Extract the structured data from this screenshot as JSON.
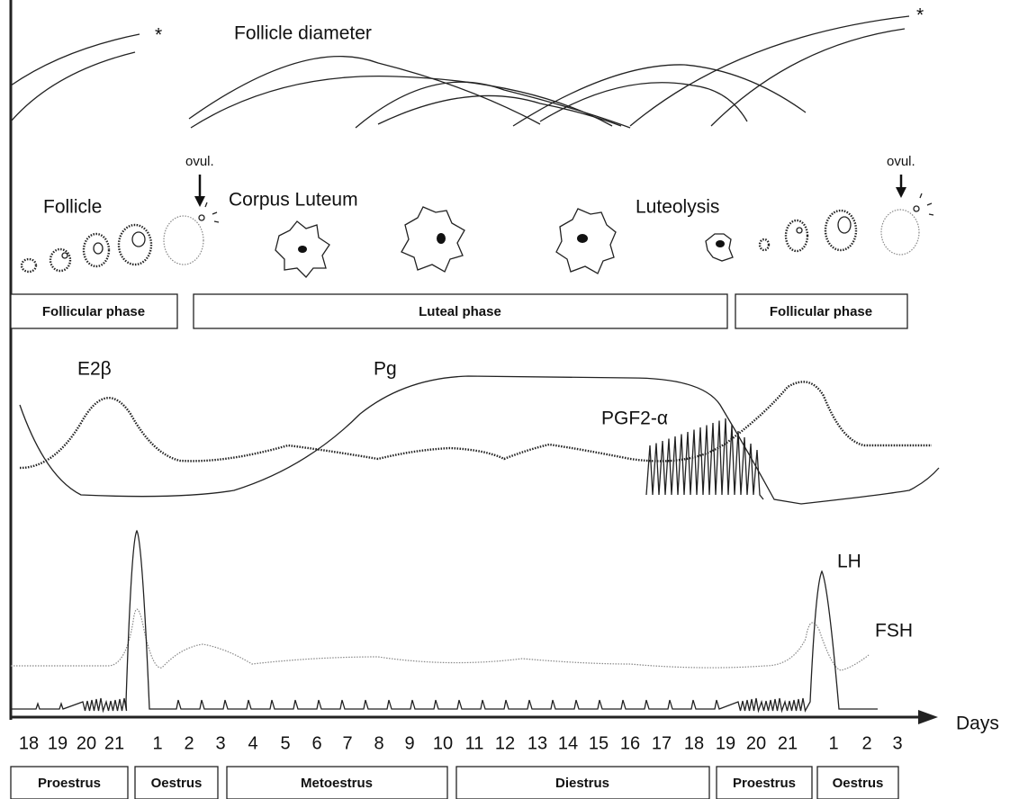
{
  "labels": {
    "follicle_diameter": "Follicle diameter",
    "star_left": "*",
    "star_right": "*",
    "ovul_left": "ovul.",
    "ovul_right": "ovul.",
    "follicle": "Follicle",
    "corpus_luteum": "Corpus Luteum",
    "luteolysis": "Luteolysis",
    "e2b": "E2β",
    "pg": "Pg",
    "pgf2a": "PGF2-α",
    "lh": "LH",
    "fsh": "FSH",
    "days": "Days"
  },
  "phases": [
    "Follicular phase",
    "Luteal phase",
    "Follicular phase"
  ],
  "days": [
    18,
    19,
    20,
    21,
    1,
    2,
    3,
    4,
    5,
    6,
    7,
    8,
    9,
    10,
    11,
    12,
    13,
    14,
    15,
    16,
    17,
    18,
    19,
    20,
    21,
    1,
    2,
    3
  ],
  "stages": [
    "Proestrus",
    "Oestrus",
    "Metoestrus",
    "Diestrus",
    "Proestrus",
    "Oestrus"
  ]
}
